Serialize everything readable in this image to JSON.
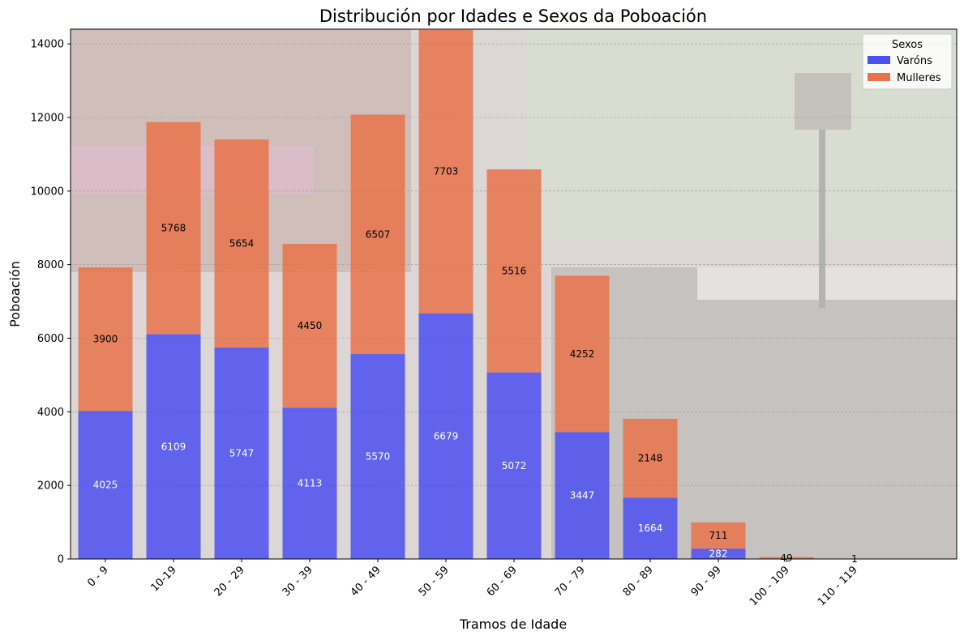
{
  "chart_data": {
    "type": "bar",
    "stacked": true,
    "title": "Distribución por Idades e Sexos da Poboación",
    "xlabel": "Tramos de Idade",
    "ylabel": "Poboación",
    "ylim": [
      0,
      14400
    ],
    "yticks": [
      0,
      2000,
      4000,
      6000,
      8000,
      10000,
      12000,
      14000
    ],
    "yticks_labels": [
      "0",
      "2000",
      "4000",
      "6000",
      "8000",
      "10000",
      "12000",
      "14000"
    ],
    "grid": "horizontal, dashed",
    "background": "faded photo of a crowded street market",
    "categories": [
      "0 - 9",
      "10-19",
      "20 - 29",
      "30 - 39",
      "40 - 49",
      "50 - 59",
      "60 - 69",
      "70 - 79",
      "80 - 89",
      "90 - 99",
      "100 - 109",
      "110 - 119"
    ],
    "legend": {
      "title": "Sexos",
      "position": "top-right"
    },
    "series": [
      {
        "name": "Varóns",
        "color": "#4b4ff0",
        "values": [
          4025,
          6109,
          5747,
          4113,
          5570,
          6679,
          5072,
          3447,
          1664,
          282,
          0,
          0
        ],
        "labels": [
          "4025",
          "6109",
          "5747",
          "4113",
          "5570",
          "6679",
          "5072",
          "3447",
          "1664",
          "282",
          "",
          ""
        ]
      },
      {
        "name": "Mulleres",
        "color": "#e8734a",
        "values": [
          3900,
          5768,
          5654,
          4450,
          6507,
          7703,
          5516,
          4252,
          2148,
          711,
          49,
          1
        ],
        "labels": [
          "3900",
          "5768",
          "5654",
          "4450",
          "6507",
          "7703",
          "5516",
          "4252",
          "2148",
          "711",
          "49",
          "1"
        ]
      }
    ]
  }
}
